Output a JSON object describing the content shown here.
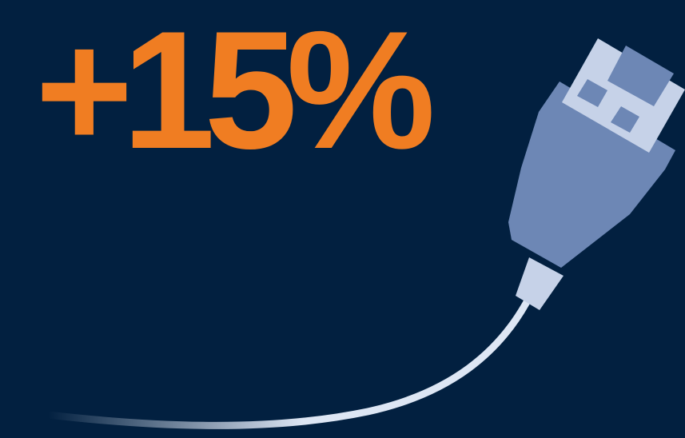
{
  "headline": {
    "value": "+15%"
  },
  "colors": {
    "background": "#022040",
    "accent": "#f07d22",
    "plug_body": "#6d87b5",
    "plug_light": "#c6d2e8",
    "cable": "#dde6f4"
  },
  "illustration": {
    "icon": "ethernet-cable-icon"
  }
}
